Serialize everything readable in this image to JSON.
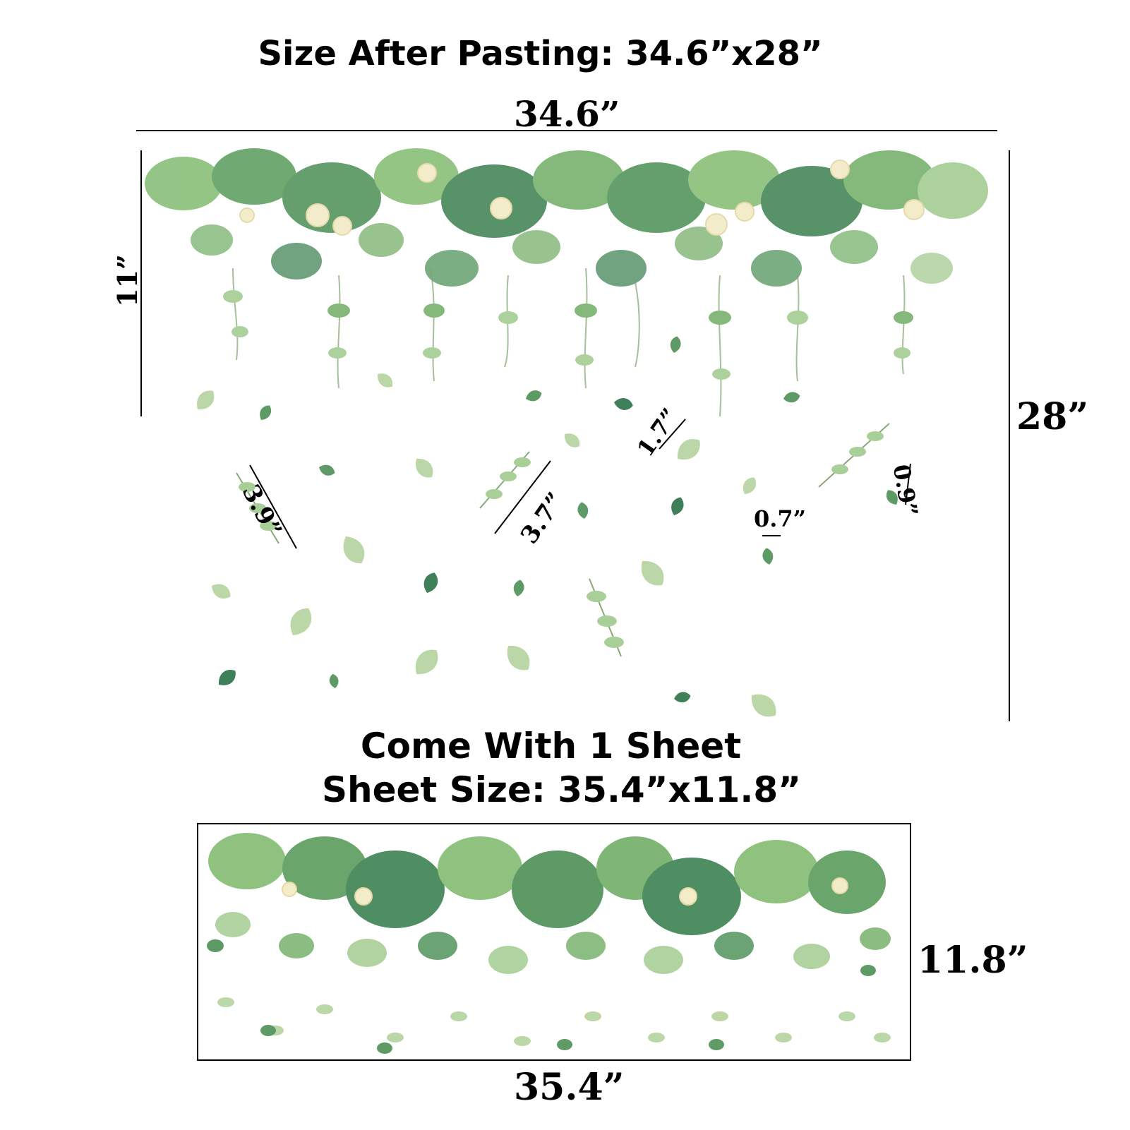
{
  "header": {
    "title": "Size After Pasting: 34.6”x28”"
  },
  "top_diagram": {
    "width_label": "34.6”",
    "height_label": "28”",
    "vine_height_label": "11”",
    "measure_labels": {
      "leaf_a": "3.9”",
      "leaf_b": "3.7”",
      "leaf_c": "1.7”",
      "leaf_d": "0.7”",
      "leaf_e": "0.9”"
    }
  },
  "sheet_info": {
    "line1": "Come With 1 Sheet",
    "line2": "Sheet Size: 35.4”x11.8”"
  },
  "sheet_diagram": {
    "width_label": "35.4”",
    "height_label": "11.8”"
  },
  "colors": {
    "leaf_dark": "#3f7f5a",
    "leaf_mid": "#6aa56b",
    "leaf_light": "#a9cf98",
    "flower": "#f3ecc8"
  }
}
